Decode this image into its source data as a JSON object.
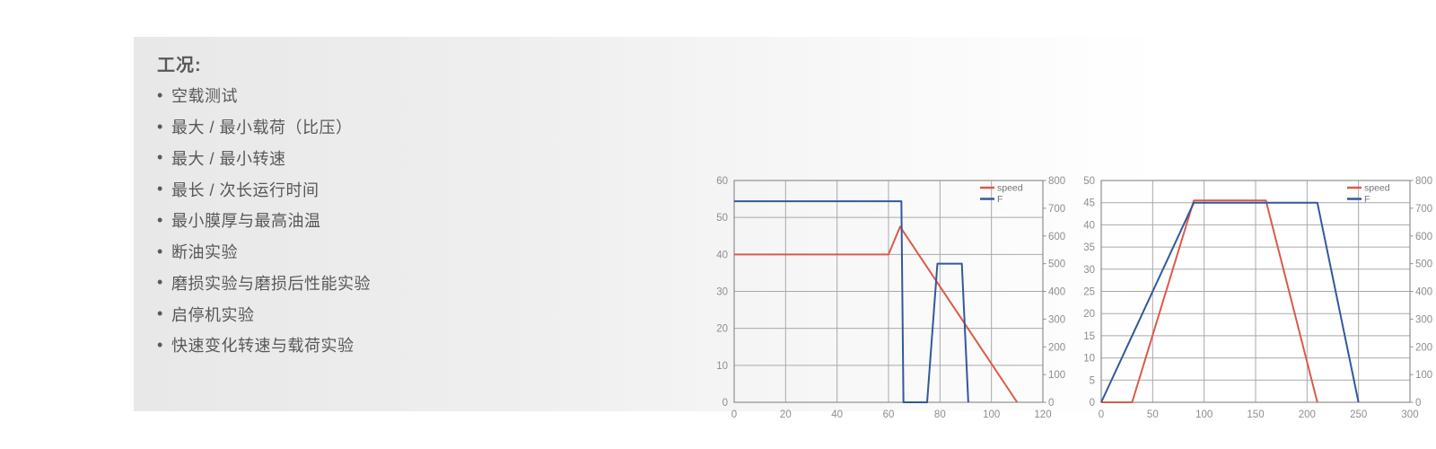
{
  "colors": {
    "speed_red": "#d95b4a",
    "f_blue": "#33589b",
    "grid": "#a9a9a9",
    "plot_border": "#8f8f8f",
    "axis_text": "#8e8e8e",
    "legend_text": "#737373",
    "body_text": "#57585a",
    "panel_left": "#e8e8e8",
    "panel_right": "#ffffff"
  },
  "conditions": {
    "title": "工况:",
    "bullet": "•",
    "items": [
      "空载测试",
      "最大 / 最小载荷（比压）",
      "最大 / 最小转速",
      "最长 / 次长运行时间",
      "最小膜厚与最高油温",
      "断油实验",
      "磨损实验与磨损后性能实验",
      "启停机实验",
      "快速变化转速与载荷实验"
    ]
  },
  "chart_data": [
    {
      "type": "line",
      "title": "",
      "xlabel": "",
      "ylabel_left": "",
      "ylabel_right": "",
      "grid": true,
      "legend_position": "top-right",
      "x_axis": {
        "min": 0,
        "max": 120,
        "ticks": [
          0,
          20,
          40,
          60,
          80,
          100,
          120
        ]
      },
      "y_left": {
        "min": 0,
        "max": 60,
        "ticks": [
          0,
          10,
          20,
          30,
          40,
          50,
          60
        ]
      },
      "y_right": {
        "min": 0,
        "max": 800,
        "ticks": [
          0,
          100,
          200,
          300,
          400,
          500,
          600,
          700,
          800
        ]
      },
      "series": [
        {
          "name": "speed",
          "axis": "left",
          "color_key": "speed_red",
          "points": [
            [
              0,
              40
            ],
            [
              60,
              40
            ],
            [
              64.5,
              47.5
            ],
            [
              110,
              0
            ]
          ]
        },
        {
          "name": "F",
          "axis": "right",
          "color_key": "f_blue",
          "points": [
            [
              0,
              725
            ],
            [
              65,
              725
            ],
            [
              65.8,
              0
            ],
            [
              75,
              0
            ],
            [
              79,
              500
            ],
            [
              88.5,
              500
            ],
            [
              91,
              0
            ]
          ]
        }
      ]
    },
    {
      "type": "line",
      "title": "",
      "xlabel": "",
      "ylabel_left": "",
      "ylabel_right": "",
      "grid": true,
      "legend_position": "top-right",
      "x_axis": {
        "min": 0,
        "max": 300,
        "ticks": [
          0,
          50,
          100,
          150,
          200,
          250,
          300
        ]
      },
      "y_left": {
        "min": 0,
        "max": 50,
        "ticks": [
          0,
          5,
          10,
          15,
          20,
          25,
          30,
          35,
          40,
          45,
          50
        ]
      },
      "y_right": {
        "min": 0,
        "max": 800,
        "ticks": [
          0,
          100,
          200,
          300,
          400,
          500,
          600,
          700,
          800
        ]
      },
      "series": [
        {
          "name": "speed",
          "axis": "left",
          "color_key": "speed_red",
          "points": [
            [
              0,
              0
            ],
            [
              30,
              0
            ],
            [
              90,
              45.5
            ],
            [
              160,
              45.5
            ],
            [
              210,
              0
            ]
          ]
        },
        {
          "name": "F",
          "axis": "right",
          "color_key": "f_blue",
          "points": [
            [
              0,
              0
            ],
            [
              90,
              720
            ],
            [
              210,
              720
            ],
            [
              250,
              0
            ]
          ]
        }
      ]
    }
  ]
}
